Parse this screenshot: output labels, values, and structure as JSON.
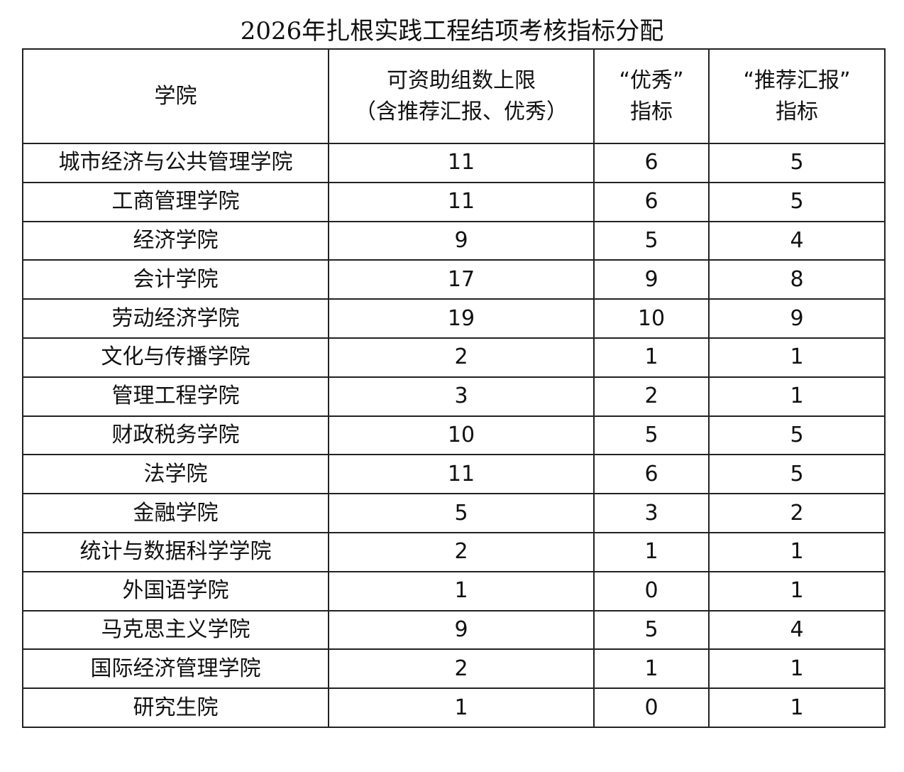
{
  "title": "2026年扎根实践工程结项考核指标分配",
  "headers": {
    "college": "学院",
    "limit_line1": "可资助组数上限",
    "limit_line2": "（含推荐汇报、优秀）",
    "excellent_line1": "“优秀”",
    "excellent_line2": "指标",
    "report_line1": "“推荐汇报”",
    "report_line2": "指标"
  },
  "rows": [
    {
      "college": "城市经济与公共管理学院",
      "limit": "11",
      "excellent": "6",
      "report": "5"
    },
    {
      "college": "工商管理学院",
      "limit": "11",
      "excellent": "6",
      "report": "5"
    },
    {
      "college": "经济学院",
      "limit": "9",
      "excellent": "5",
      "report": "4"
    },
    {
      "college": "会计学院",
      "limit": "17",
      "excellent": "9",
      "report": "8"
    },
    {
      "college": "劳动经济学院",
      "limit": "19",
      "excellent": "10",
      "report": "9"
    },
    {
      "college": "文化与传播学院",
      "limit": "2",
      "excellent": "1",
      "report": "1"
    },
    {
      "college": "管理工程学院",
      "limit": "3",
      "excellent": "2",
      "report": "1"
    },
    {
      "college": "财政税务学院",
      "limit": "10",
      "excellent": "5",
      "report": "5"
    },
    {
      "college": "法学院",
      "limit": "11",
      "excellent": "6",
      "report": "5"
    },
    {
      "college": "金融学院",
      "limit": "5",
      "excellent": "3",
      "report": "2"
    },
    {
      "college": "统计与数据科学学院",
      "limit": "2",
      "excellent": "1",
      "report": "1"
    },
    {
      "college": "外国语学院",
      "limit": "1",
      "excellent": "0",
      "report": "1"
    },
    {
      "college": "马克思主义学院",
      "limit": "9",
      "excellent": "5",
      "report": "4"
    },
    {
      "college": "国际经济管理学院",
      "limit": "2",
      "excellent": "1",
      "report": "1"
    },
    {
      "college": "研究生院",
      "limit": "1",
      "excellent": "0",
      "report": "1"
    }
  ]
}
